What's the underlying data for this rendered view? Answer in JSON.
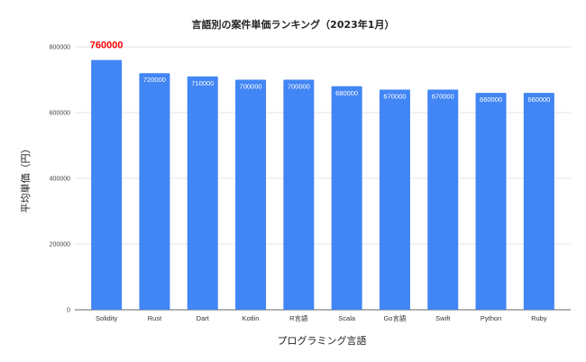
{
  "chart_data": {
    "type": "bar",
    "title": "言語別の案件単価ランキング（2023年1月）",
    "xlabel": "プログラミング言語",
    "ylabel": "平均単価（円）",
    "categories": [
      "Solidity",
      "Rust",
      "Dart",
      "Kotlin",
      "R言語",
      "Scala",
      "Go言語",
      "Swift",
      "Python",
      "Ruby"
    ],
    "values": [
      760000,
      720000,
      710000,
      700000,
      700000,
      680000,
      670000,
      670000,
      660000,
      660000
    ],
    "data_labels": [
      "760000",
      "720000",
      "710000",
      "700000",
      "700000",
      "680000",
      "670000",
      "670000",
      "660000",
      "660000"
    ],
    "ylim": [
      0,
      800000
    ],
    "yticks": [
      "0",
      "200000",
      "400000",
      "600000",
      "800000"
    ],
    "grid": true,
    "legend": "none",
    "colors": {
      "bar": "#4285f4",
      "highlight_label": "#ff0000",
      "grid": "#e6e6e6"
    }
  }
}
